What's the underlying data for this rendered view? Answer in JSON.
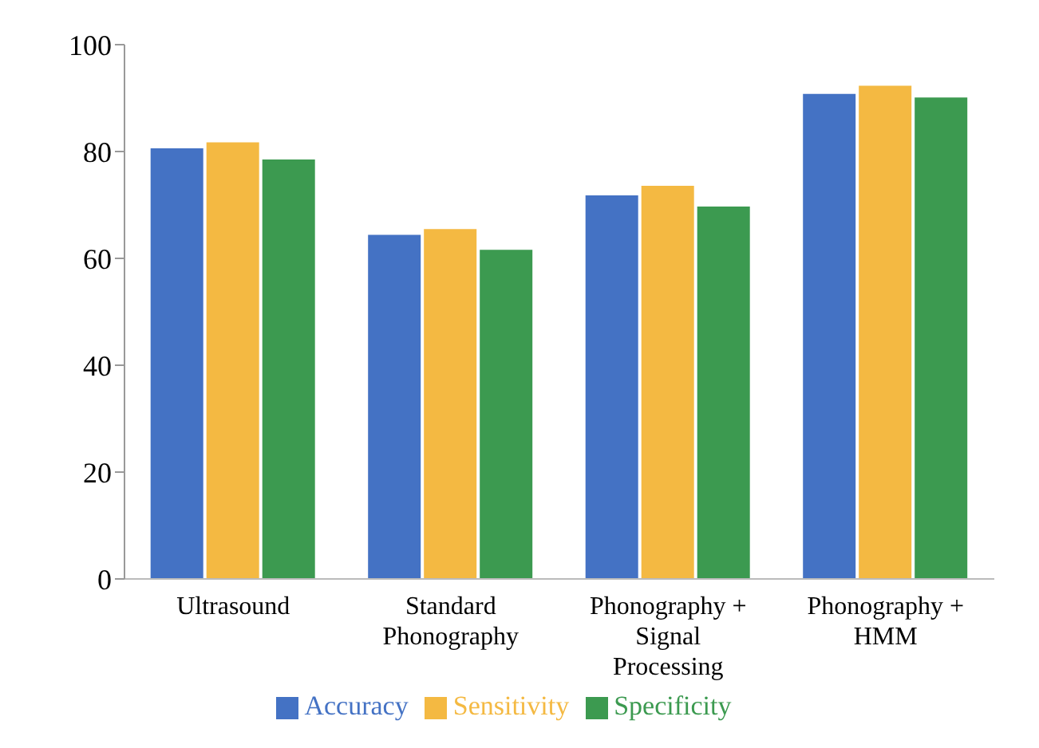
{
  "chart_data": {
    "type": "bar",
    "categories": [
      "Ultrasound",
      "Standard Phonography",
      "Phonography + Signal Processing",
      "Phonography + HMM"
    ],
    "series": [
      {
        "name": "Accuracy",
        "color": "#4472c4",
        "values": [
          80.6,
          64.4,
          71.8,
          90.8
        ]
      },
      {
        "name": "Sensitivity",
        "color": "#f4b942",
        "values": [
          81.7,
          65.5,
          73.6,
          92.3
        ]
      },
      {
        "name": "Specificity",
        "color": "#3c9a50",
        "values": [
          78.5,
          61.6,
          69.7,
          90.1
        ]
      }
    ],
    "ylim": [
      0,
      100
    ],
    "yticks": [
      0,
      20,
      40,
      60,
      80,
      100
    ],
    "grid": false,
    "legend": "bottom"
  }
}
